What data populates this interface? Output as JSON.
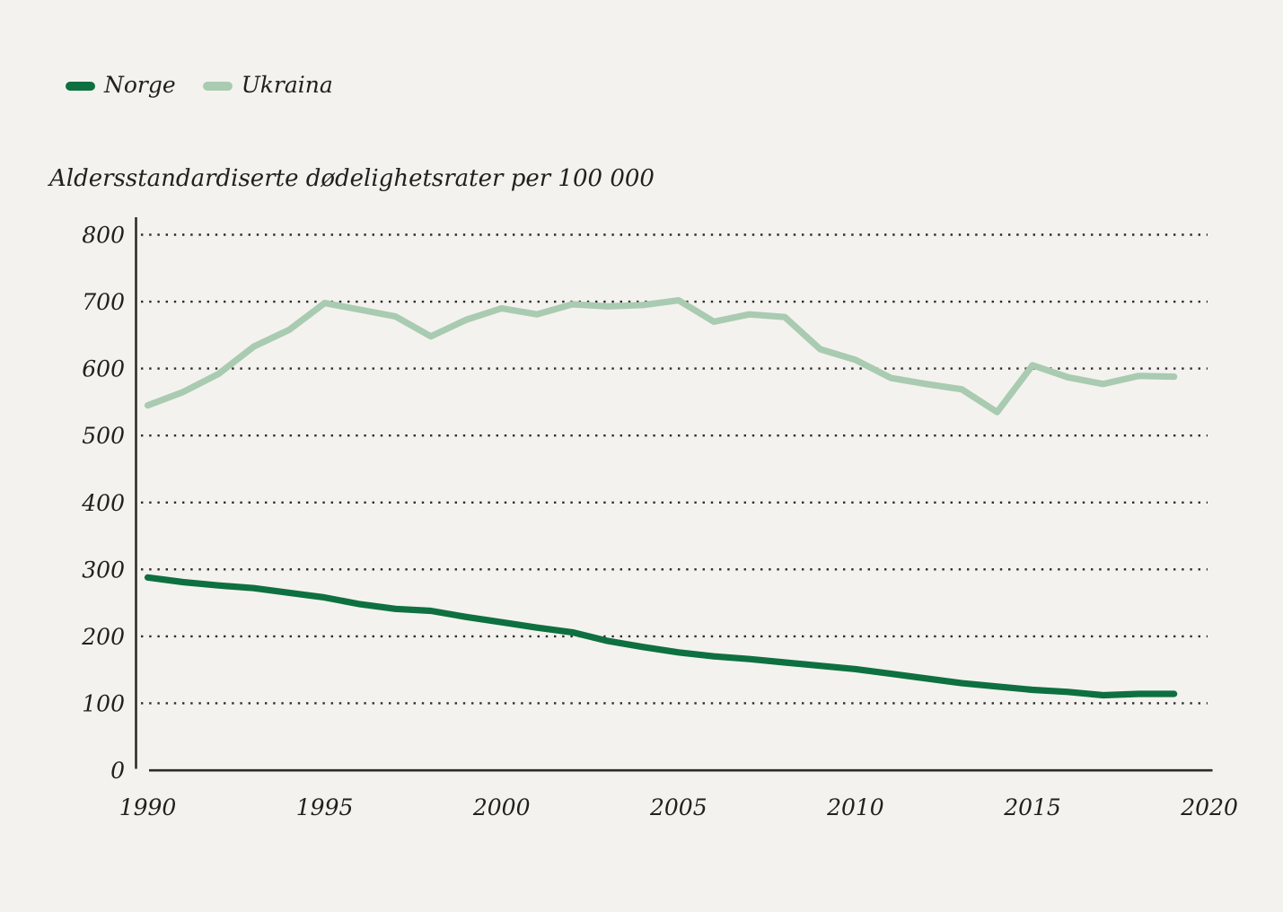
{
  "page": {
    "background_color": "#f4f2ee",
    "axis_color": "#2d2c29",
    "text_color": "#21201d"
  },
  "legend": {
    "items": [
      {
        "label": "Norge",
        "color": "#0e7040"
      },
      {
        "label": "Ukraina",
        "color": "#a9cbb1"
      }
    ]
  },
  "chart_data": {
    "type": "line",
    "title": "Aldersstandardiserte dødelighetsrater per 100 000",
    "xlabel": "",
    "ylabel": "Aldersstandardiserte dødelighetsrater per 100 000",
    "x": [
      1990,
      1991,
      1992,
      1993,
      1994,
      1995,
      1996,
      1997,
      1998,
      1999,
      2000,
      2001,
      2002,
      2003,
      2004,
      2005,
      2006,
      2007,
      2008,
      2009,
      2010,
      2011,
      2012,
      2013,
      2014,
      2015,
      2016,
      2017,
      2018,
      2019
    ],
    "series": [
      {
        "name": "Norge",
        "color": "#0e7040",
        "values": [
          288,
          281,
          276,
          272,
          265,
          258,
          248,
          241,
          238,
          229,
          221,
          213,
          206,
          193,
          184,
          176,
          170,
          166,
          161,
          156,
          151,
          144,
          137,
          130,
          125,
          120,
          117,
          112,
          114,
          114
        ]
      },
      {
        "name": "Ukraina",
        "color": "#a9cbb1",
        "values": [
          545,
          565,
          592,
          633,
          658,
          698,
          688,
          678,
          648,
          673,
          690,
          681,
          696,
          693,
          695,
          702,
          670,
          681,
          677,
          629,
          613,
          586,
          577,
          569,
          535,
          605,
          587,
          577,
          589,
          588
        ]
      }
    ],
    "xlim": [
      1990,
      2020
    ],
    "ylim": [
      0,
      800
    ],
    "xticks": [
      1990,
      1995,
      2000,
      2005,
      2010,
      2015,
      2020
    ],
    "yticks": [
      0,
      100,
      200,
      300,
      400,
      500,
      600,
      700,
      800
    ],
    "grid": "horizontal-dotted",
    "legend_position": "top-left"
  }
}
